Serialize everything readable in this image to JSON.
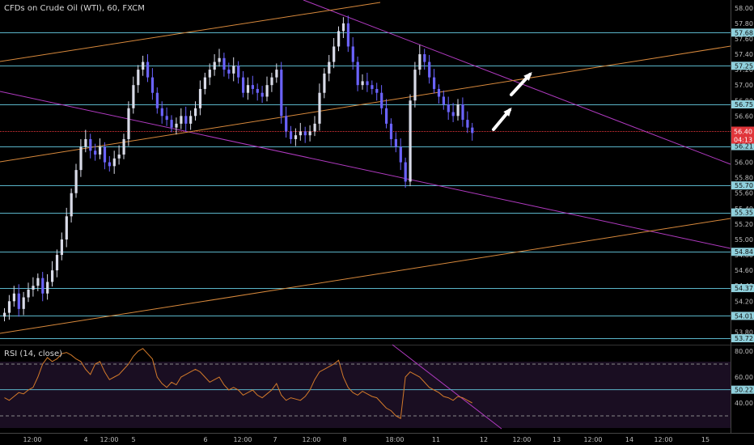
{
  "title": "CFDs on Crude Oil (WTI), 60, FXCM",
  "rsi_title": "RSI (14, close)",
  "colors": {
    "background": "#000000",
    "up_candle": "#d9dbe8",
    "down_candle_body": "#6b63ff",
    "bear_candle": "#c1272d",
    "hline": "#5ab4c8",
    "trend_purple": "#b03ac0",
    "trend_orange": "#d8893c",
    "rsi_line": "#d37a2a",
    "rsi_bg": "#1a0e22",
    "price_tag_bg": "#8fd0dc",
    "current_tag_bg": "#e0353a",
    "arrow": "#ffffff"
  },
  "chart_data": {
    "type": "candlestick",
    "title": "CFDs on Crude Oil (WTI), 60, FXCM",
    "ylim": [
      53.7,
      58.05
    ],
    "y_ticks": [
      "58.00",
      "57.80",
      "57.60",
      "57.40",
      "57.20",
      "57.00",
      "56.80",
      "56.60",
      "56.40",
      "56.20",
      "56.00",
      "55.80",
      "55.60",
      "55.40",
      "55.20",
      "55.00",
      "54.80",
      "54.60",
      "54.40",
      "54.20",
      "54.00",
      "53.80"
    ],
    "x_tick_labels": [
      "12:00",
      "4",
      "12:00",
      "5",
      "6",
      "12:00",
      "7",
      "12:00",
      "8",
      "18:00",
      "11",
      "12",
      "12:00",
      "13",
      "12:00",
      "14",
      "12:00",
      "15"
    ],
    "horizontal_levels": [
      57.68,
      57.25,
      56.75,
      56.21,
      55.7,
      55.35,
      54.84,
      54.37,
      54.01,
      53.72
    ],
    "level_labels": [
      "57.68",
      "57.25",
      "56.75",
      "56.21",
      "55.70",
      "55.35",
      "54.84",
      "54.37",
      "54.01",
      "53.72"
    ],
    "current_price": 56.4,
    "current_price_label": "56.40",
    "countdown_label": "04:13",
    "price_path": [
      54.05,
      54.2,
      54.3,
      54.1,
      54.25,
      54.35,
      54.4,
      54.5,
      54.3,
      54.45,
      54.6,
      54.8,
      55.0,
      55.3,
      55.6,
      55.9,
      56.2,
      56.3,
      56.15,
      56.1,
      56.2,
      56.0,
      55.95,
      56.05,
      56.1,
      56.3,
      56.7,
      57.0,
      57.2,
      57.3,
      57.1,
      56.9,
      56.7,
      56.6,
      56.55,
      56.45,
      56.5,
      56.6,
      56.5,
      56.6,
      56.7,
      56.95,
      57.1,
      57.2,
      57.3,
      57.35,
      57.2,
      57.15,
      57.25,
      57.1,
      56.9,
      57.0,
      56.95,
      56.9,
      56.85,
      57.0,
      57.1,
      57.2,
      56.6,
      56.4,
      56.3,
      56.35,
      56.4,
      56.35,
      56.4,
      56.5,
      56.9,
      57.15,
      57.3,
      57.5,
      57.7,
      57.8,
      57.5,
      57.3,
      57.0,
      57.05,
      57.0,
      56.95,
      56.9,
      56.7,
      56.5,
      56.3,
      56.2,
      56.0,
      55.75,
      56.8,
      57.2,
      57.4,
      57.3,
      57.1,
      56.95,
      56.85,
      56.75,
      56.65,
      56.6,
      56.75,
      56.55,
      56.45,
      56.38
    ],
    "arrows": 2,
    "rsi": {
      "period": 14,
      "ylim": [
        20,
        85
      ],
      "y_ticks": [
        "80.00",
        "60.00",
        "40.00"
      ],
      "levels": [
        70,
        30
      ],
      "marked_level": 50.22,
      "marked_level_label": "50.22",
      "values": [
        44,
        42,
        45,
        48,
        47,
        50,
        52,
        60,
        70,
        75,
        72,
        74,
        78,
        79,
        77,
        74,
        72,
        66,
        62,
        70,
        72,
        64,
        58,
        60,
        62,
        66,
        70,
        76,
        80,
        82,
        78,
        74,
        60,
        55,
        52,
        56,
        54,
        60,
        62,
        64,
        66,
        64,
        60,
        56,
        58,
        60,
        54,
        50,
        52,
        50,
        46,
        48,
        50,
        46,
        44,
        47,
        50,
        55,
        46,
        42,
        44,
        43,
        42,
        45,
        50,
        58,
        64,
        66,
        68,
        70,
        73,
        60,
        52,
        48,
        46,
        49,
        47,
        45,
        44,
        40,
        36,
        34,
        30,
        28,
        60,
        64,
        62,
        60,
        56,
        52,
        50,
        48,
        45,
        44,
        42,
        45,
        44,
        42,
        40
      ]
    }
  }
}
